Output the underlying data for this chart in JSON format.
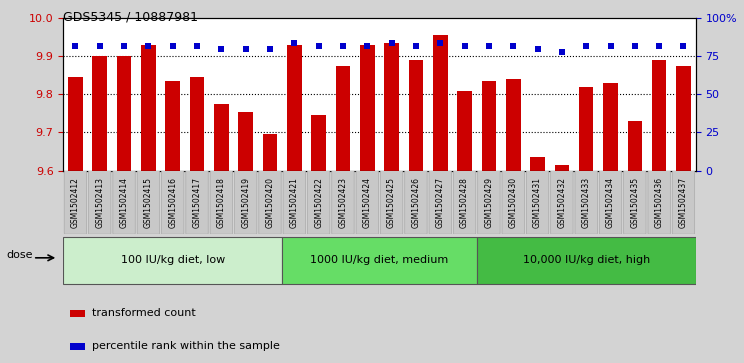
{
  "title": "GDS5345 / 10887981",
  "categories": [
    "GSM1502412",
    "GSM1502413",
    "GSM1502414",
    "GSM1502415",
    "GSM1502416",
    "GSM1502417",
    "GSM1502418",
    "GSM1502419",
    "GSM1502420",
    "GSM1502421",
    "GSM1502422",
    "GSM1502423",
    "GSM1502424",
    "GSM1502425",
    "GSM1502426",
    "GSM1502427",
    "GSM1502428",
    "GSM1502429",
    "GSM1502430",
    "GSM1502431",
    "GSM1502432",
    "GSM1502433",
    "GSM1502434",
    "GSM1502435",
    "GSM1502436",
    "GSM1502437"
  ],
  "bar_values": [
    9.845,
    9.9,
    9.9,
    9.93,
    9.835,
    9.845,
    9.775,
    9.755,
    9.695,
    9.93,
    9.745,
    9.875,
    9.93,
    9.935,
    9.89,
    9.955,
    9.81,
    9.835,
    9.84,
    9.635,
    9.615,
    9.82,
    9.83,
    9.73,
    9.89,
    9.875
  ],
  "percentile_values": [
    82,
    82,
    82,
    82,
    82,
    82,
    80,
    80,
    80,
    84,
    82,
    82,
    82,
    84,
    82,
    84,
    82,
    82,
    82,
    80,
    78,
    82,
    82,
    82,
    82,
    82
  ],
  "bar_color": "#cc0000",
  "percentile_color": "#0000cc",
  "ylim_left": [
    9.6,
    10.0
  ],
  "ylim_right": [
    0,
    100
  ],
  "yticks_left": [
    9.6,
    9.7,
    9.8,
    9.9,
    10.0
  ],
  "yticks_right": [
    0,
    25,
    50,
    75,
    100
  ],
  "ytick_labels_right": [
    "0",
    "25",
    "50",
    "75",
    "100%"
  ],
  "grid_values": [
    9.9,
    9.8,
    9.7
  ],
  "groups": [
    {
      "label": "100 IU/kg diet, low",
      "start": 0,
      "end": 9,
      "color": "#cceecc"
    },
    {
      "label": "1000 IU/kg diet, medium",
      "start": 9,
      "end": 17,
      "color": "#66dd66"
    },
    {
      "label": "10,000 IU/kg diet, high",
      "start": 17,
      "end": 26,
      "color": "#44bb44"
    }
  ],
  "legend_items": [
    {
      "label": "transformed count",
      "color": "#cc0000"
    },
    {
      "label": "percentile rank within the sample",
      "color": "#0000cc"
    }
  ],
  "dose_label": "dose",
  "bg_color": "#d3d3d3",
  "plot_bg": "#ffffff",
  "xtick_bg": "#cccccc"
}
